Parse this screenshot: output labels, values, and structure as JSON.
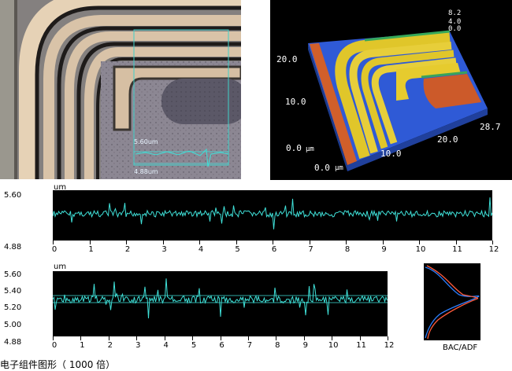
{
  "micrograph": {
    "measure_top": "5.60um",
    "measure_bottom": "4.88um"
  },
  "surface3d": {
    "z_values": [
      "8.2",
      "4.0",
      "0.0"
    ],
    "y_ticks": [
      "20.0",
      "10.0",
      "0.0"
    ],
    "y_unit": "μm",
    "x_ticks": [
      "0.0",
      "10.0",
      "20.0",
      "28.7"
    ],
    "x_unit": "μm"
  },
  "profile_top": {
    "unit": "um",
    "y_top": "5.60",
    "y_bottom": "4.88",
    "x_ticks": [
      "0",
      "1",
      "2",
      "3",
      "4",
      "5",
      "6",
      "7",
      "8",
      "9",
      "10",
      "11",
      "12"
    ]
  },
  "profile_bottom": {
    "unit": "um",
    "y_ticks": [
      "5.60",
      "5.40",
      "5.20",
      "5.00",
      "4.88"
    ],
    "x_ticks": [
      "0",
      "1",
      "2",
      "3",
      "4",
      "5",
      "6",
      "7",
      "8",
      "9",
      "10",
      "11",
      "12"
    ]
  },
  "histogram": {
    "label": "BAC/ADF"
  },
  "caption": "电子组件图形（ 1000 倍）"
}
